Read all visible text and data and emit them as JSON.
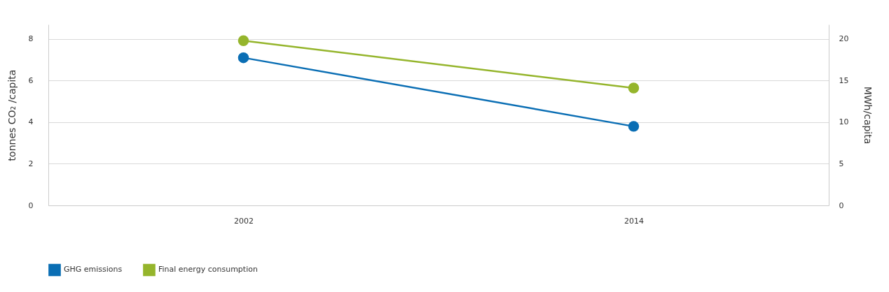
{
  "chart_data": {
    "type": "line",
    "categories": [
      "2002",
      "2014"
    ],
    "series": [
      {
        "name": "GHG emissions",
        "color": "#0a6eb4",
        "values": [
          7.1,
          3.8
        ]
      },
      {
        "name": "Final energy consumption",
        "color": "#95b52c",
        "values": [
          19.8,
          14.1
        ],
        "axis": "y2"
      }
    ],
    "ylabel": "tonnes CO₂ /capita",
    "y2label": "MWh/capita",
    "ylim": [
      0,
      8.7
    ],
    "yticks": [
      0,
      2,
      4,
      6,
      8
    ],
    "y2lim": [
      0,
      21.75
    ],
    "y2ticks": [
      0,
      5,
      10,
      15,
      20
    ],
    "grid": "y",
    "legend": "bottom",
    "marker": "circle"
  }
}
